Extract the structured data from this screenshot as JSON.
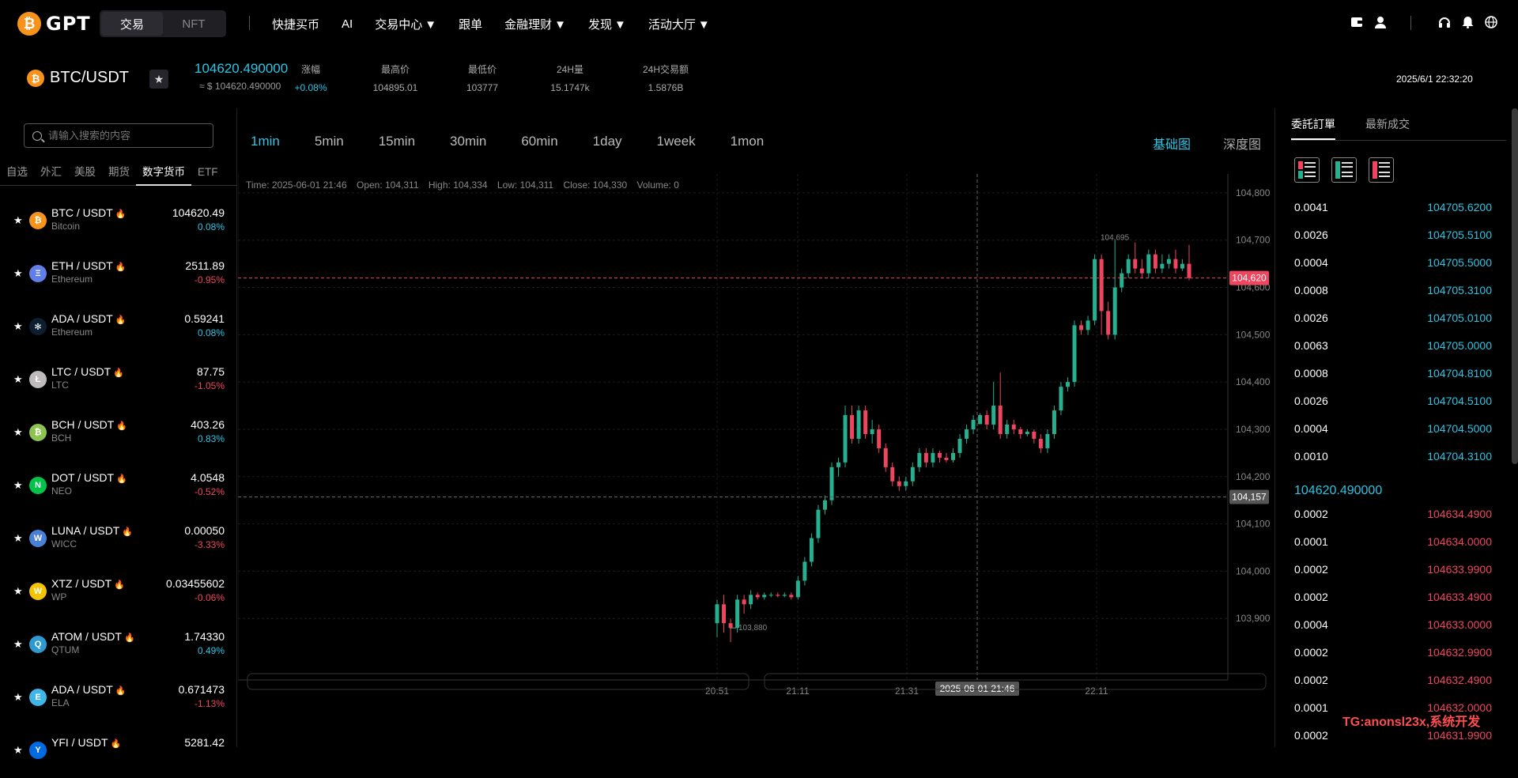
{
  "topbar": {
    "logo_coin": "₿",
    "logo_text": "GPT",
    "seg": [
      "交易",
      "NFT"
    ],
    "nav": [
      {
        "label": "快捷买币",
        "dropdown": false
      },
      {
        "label": "AI",
        "dropdown": false
      },
      {
        "label": "交易中心",
        "dropdown": true
      },
      {
        "label": "跟单",
        "dropdown": false
      },
      {
        "label": "金融理财",
        "dropdown": true
      },
      {
        "label": "发现",
        "dropdown": true
      },
      {
        "label": "活动大厅",
        "dropdown": true
      }
    ],
    "icons": [
      "wallet-icon",
      "user-icon",
      "headset-icon",
      "bell-icon",
      "globe-icon"
    ]
  },
  "ticker": {
    "coin": "₿",
    "pair": "BTC/USDT",
    "price": "104620.490000",
    "usd": "≈ $ 104620.490000",
    "stats": [
      {
        "label": "涨幅",
        "value": "+0.08%",
        "up": true
      },
      {
        "label": "最高价",
        "value": "104895.01",
        "up": false
      },
      {
        "label": "最低价",
        "value": "103777",
        "up": false
      },
      {
        "label": "24H量",
        "value": "15.1747k",
        "up": false
      },
      {
        "label": "24H交易额",
        "value": "1.5876B",
        "up": false
      }
    ],
    "datetime": "2025/6/1 22:32:20"
  },
  "sidebar": {
    "search_placeholder": "请输入搜索的内容",
    "categories": [
      "自选",
      "外汇",
      "美股",
      "期货",
      "数字货币",
      "ETF"
    ],
    "active_category": "数字货币",
    "items": [
      {
        "name": "BTC / USDT",
        "sub": "Bitcoin",
        "price": "104620.49",
        "change": "0.08%",
        "up": true,
        "icon_color": "#f7931a",
        "glyph": "₿"
      },
      {
        "name": "ETH / USDT",
        "sub": "Ethereum",
        "price": "2511.89",
        "change": "-0.95%",
        "up": false,
        "icon_color": "#627eea",
        "glyph": "Ξ"
      },
      {
        "name": "ADA / USDT",
        "sub": "Ethereum",
        "price": "0.59241",
        "change": "0.08%",
        "up": true,
        "icon_color": "#0d1e30",
        "glyph": "✻"
      },
      {
        "name": "LTC / USDT",
        "sub": "LTC",
        "price": "87.75",
        "change": "-1.05%",
        "up": false,
        "icon_color": "#bfbbbb",
        "glyph": "Ł"
      },
      {
        "name": "BCH / USDT",
        "sub": "BCH",
        "price": "403.26",
        "change": "0.83%",
        "up": true,
        "icon_color": "#8dc351",
        "glyph": "₿"
      },
      {
        "name": "DOT / USDT",
        "sub": "NEO",
        "price": "4.0548",
        "change": "-0.52%",
        "up": false,
        "icon_color": "#00c34a",
        "glyph": "N"
      },
      {
        "name": "LUNA / USDT",
        "sub": "WICC",
        "price": "0.00050",
        "change": "-3.33%",
        "up": false,
        "icon_color": "#4a7fd8",
        "glyph": "W"
      },
      {
        "name": "XTZ / USDT",
        "sub": "WP",
        "price": "0.03455602",
        "change": "-0.06%",
        "up": false,
        "icon_color": "#f5c400",
        "glyph": "W"
      },
      {
        "name": "ATOM / USDT",
        "sub": "QTUM",
        "price": "1.74330",
        "change": "0.49%",
        "up": true,
        "icon_color": "#2e9ad0",
        "glyph": "Q"
      },
      {
        "name": "ADA / USDT",
        "sub": "ELA",
        "price": "0.671473",
        "change": "-1.13%",
        "up": false,
        "icon_color": "#3fb5e8",
        "glyph": "E"
      },
      {
        "name": "YFI / USDT",
        "sub": "",
        "price": "5281.42",
        "change": "",
        "up": true,
        "icon_color": "#006ae3",
        "glyph": "Y"
      }
    ]
  },
  "chart": {
    "intervals": [
      "1min",
      "5min",
      "15min",
      "30min",
      "60min",
      "1day",
      "1week",
      "1mon"
    ],
    "active_interval": "1min",
    "views": [
      "基础图",
      "深度图"
    ],
    "active_view": "基础图",
    "ohlc": {
      "time": "Time: 2025-06-01 21:46",
      "open": "Open: 104,311",
      "high": "High: 104,334",
      "low": "Low: 104,311",
      "close": "Close: 104,330",
      "volume": "Volume: 0"
    },
    "y_ticks": [
      "104,800",
      "104,700",
      "104,600",
      "104,500",
      "104,400",
      "104,300",
      "104,200",
      "104,100",
      "104,000",
      "103,900"
    ],
    "x_ticks": [
      "20:51",
      "21:11",
      "21:31",
      "22:11"
    ],
    "crosshair_time": "2025-06-01 21:46",
    "crosshair_price": "104,157",
    "last_price": "104,620",
    "max_label": "104,695",
    "min_label": "103,880",
    "up_color": "#26b08f",
    "down_color": "#f0455f"
  },
  "chart_data": {
    "type": "candlestick",
    "ylim": [
      103800,
      104800
    ],
    "x_range": [
      "20:51",
      "22:14"
    ],
    "candles": [
      [
        103890,
        103930,
        103860,
        103940
      ],
      [
        103930,
        103890,
        103870,
        103950
      ],
      [
        103890,
        103880,
        103850,
        103900
      ],
      [
        103880,
        103940,
        103870,
        103950
      ],
      [
        103940,
        103930,
        103910,
        103950
      ],
      [
        103930,
        103950,
        103920,
        103960
      ],
      [
        103950,
        103945,
        103940,
        103955
      ],
      [
        103945,
        103950,
        103940,
        103955
      ],
      [
        103950,
        103950,
        103945,
        103955
      ],
      [
        103950,
        103948,
        103945,
        103955
      ],
      [
        103948,
        103950,
        103945,
        103955
      ],
      [
        103950,
        103945,
        103940,
        103955
      ],
      [
        103945,
        103980,
        103940,
        103990
      ],
      [
        103980,
        104020,
        103970,
        104030
      ],
      [
        104020,
        104070,
        104010,
        104080
      ],
      [
        104070,
        104130,
        104060,
        104140
      ],
      [
        104130,
        104150,
        104120,
        104160
      ],
      [
        104150,
        104220,
        104140,
        104230
      ],
      [
        104220,
        104230,
        104200,
        104240
      ],
      [
        104230,
        104330,
        104220,
        104350
      ],
      [
        104330,
        104280,
        104270,
        104350
      ],
      [
        104280,
        104340,
        104270,
        104350
      ],
      [
        104340,
        104290,
        104280,
        104350
      ],
      [
        104290,
        104300,
        104270,
        104320
      ],
      [
        104300,
        104260,
        104250,
        104310
      ],
      [
        104260,
        104220,
        104210,
        104270
      ],
      [
        104220,
        104190,
        104180,
        104230
      ],
      [
        104190,
        104180,
        104170,
        104200
      ],
      [
        104180,
        104190,
        104170,
        104200
      ],
      [
        104190,
        104220,
        104180,
        104230
      ],
      [
        104220,
        104250,
        104210,
        104260
      ],
      [
        104250,
        104230,
        104220,
        104260
      ],
      [
        104230,
        104250,
        104220,
        104260
      ],
      [
        104250,
        104240,
        104230,
        104255
      ],
      [
        104240,
        104235,
        104230,
        104250
      ],
      [
        104235,
        104250,
        104230,
        104260
      ],
      [
        104250,
        104280,
        104240,
        104290
      ],
      [
        104280,
        104300,
        104270,
        104310
      ],
      [
        104300,
        104320,
        104290,
        104330
      ],
      [
        104311,
        104330,
        104311,
        104334
      ],
      [
        104330,
        104310,
        104300,
        104340
      ],
      [
        104310,
        104350,
        104300,
        104400
      ],
      [
        104350,
        104290,
        104280,
        104420
      ],
      [
        104290,
        104310,
        104280,
        104320
      ],
      [
        104310,
        104300,
        104290,
        104320
      ],
      [
        104300,
        104290,
        104280,
        104305
      ],
      [
        104290,
        104295,
        104285,
        104300
      ],
      [
        104295,
        104280,
        104270,
        104300
      ],
      [
        104280,
        104260,
        104250,
        104290
      ],
      [
        104260,
        104290,
        104250,
        104300
      ],
      [
        104290,
        104340,
        104280,
        104350
      ],
      [
        104340,
        104390,
        104330,
        104400
      ],
      [
        104390,
        104400,
        104380,
        104410
      ],
      [
        104400,
        104520,
        104390,
        104530
      ],
      [
        104520,
        104510,
        104500,
        104530
      ],
      [
        104510,
        104530,
        104500,
        104540
      ],
      [
        104530,
        104660,
        104520,
        104670
      ],
      [
        104660,
        104550,
        104500,
        104670
      ],
      [
        104550,
        104500,
        104490,
        104570
      ],
      [
        104500,
        104600,
        104490,
        104700
      ],
      [
        104600,
        104630,
        104590,
        104640
      ],
      [
        104630,
        104660,
        104620,
        104670
      ],
      [
        104660,
        104640,
        104630,
        104695
      ],
      [
        104640,
        104630,
        104620,
        104660
      ],
      [
        104630,
        104670,
        104620,
        104680
      ],
      [
        104670,
        104640,
        104630,
        104680
      ],
      [
        104640,
        104650,
        104630,
        104670
      ],
      [
        104650,
        104660,
        104640,
        104670
      ],
      [
        104660,
        104640,
        104630,
        104680
      ],
      [
        104640,
        104650,
        104635,
        104660
      ],
      [
        104650,
        104620,
        104615,
        104690
      ]
    ]
  },
  "orderbook": {
    "tabs": [
      "委託訂單",
      "最新成交"
    ],
    "asks": [
      {
        "qty": "0.0041",
        "price": "104705.6200"
      },
      {
        "qty": "0.0026",
        "price": "104705.5100"
      },
      {
        "qty": "0.0004",
        "price": "104705.5000"
      },
      {
        "qty": "0.0008",
        "price": "104705.3100"
      },
      {
        "qty": "0.0026",
        "price": "104705.0100"
      },
      {
        "qty": "0.0063",
        "price": "104705.0000"
      },
      {
        "qty": "0.0008",
        "price": "104704.8100"
      },
      {
        "qty": "0.0026",
        "price": "104704.5100"
      },
      {
        "qty": "0.0004",
        "price": "104704.5000"
      },
      {
        "qty": "0.0010",
        "price": "104704.3100"
      }
    ],
    "mid_price": "104620.490000",
    "bids": [
      {
        "qty": "0.0002",
        "price": "104634.4900"
      },
      {
        "qty": "0.0001",
        "price": "104634.0000"
      },
      {
        "qty": "0.0002",
        "price": "104633.9900"
      },
      {
        "qty": "0.0002",
        "price": "104633.4900"
      },
      {
        "qty": "0.0004",
        "price": "104633.0000"
      },
      {
        "qty": "0.0002",
        "price": "104632.9900"
      },
      {
        "qty": "0.0002",
        "price": "104632.4900"
      },
      {
        "qty": "0.0001",
        "price": "104632.0000"
      },
      {
        "qty": "0.0002",
        "price": "104631.9900"
      }
    ],
    "ask_color": "#2bc6e6",
    "bid_color": "#f0455f"
  },
  "watermark": "TG:anonsl23x,系统开发"
}
